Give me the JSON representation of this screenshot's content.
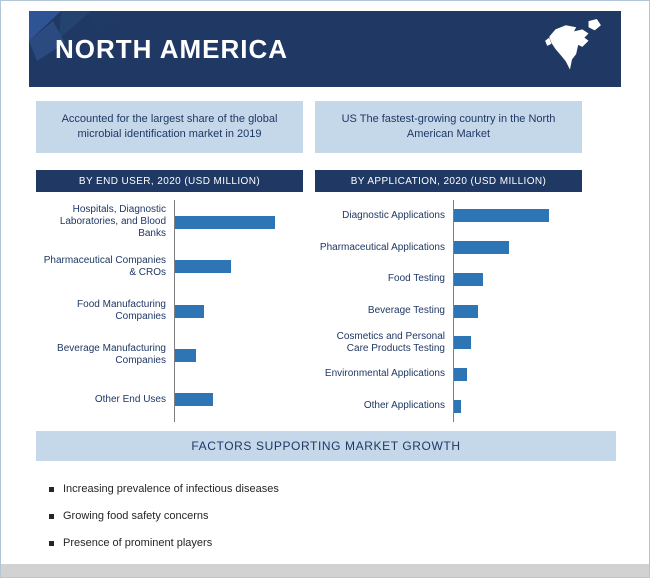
{
  "header": {
    "title": "NORTH AMERICA"
  },
  "highlights": {
    "left": "Accounted for the largest share of the global microbial identification market in 2019",
    "right": "US The fastest-growing country in the North American Market"
  },
  "chart_data": [
    {
      "type": "bar",
      "orientation": "horizontal",
      "title": "BY END USER, 2020 (USD MILLION)",
      "categories": [
        "Hospitals, Diagnostic Laboratories, and Blood Banks",
        "Pharmaceutical Companies & CROs",
        "Food Manufacturing Companies",
        "Beverage Manufacturing Companies",
        "Other End Uses"
      ],
      "values": [
        100,
        56,
        29,
        21,
        38
      ],
      "xlim": [
        0,
        128
      ],
      "xlabel": "",
      "ylabel": "",
      "grid": false,
      "legend_position": "none",
      "bar_color": "#2e75b6"
    },
    {
      "type": "bar",
      "orientation": "horizontal",
      "title": "BY APPLICATION, 2020 (USD MILLION)",
      "categories": [
        "Diagnostic Applications",
        "Pharmaceutical Applications",
        "Food Testing",
        "Beverage Testing",
        "Cosmetics and Personal Care Products Testing",
        "Environmental Applications",
        "Other Applications"
      ],
      "values": [
        95,
        55,
        29,
        24,
        17,
        13,
        7
      ],
      "xlim": [
        0,
        128
      ],
      "xlabel": "",
      "ylabel": "",
      "grid": false,
      "legend_position": "none",
      "bar_color": "#2e75b6"
    }
  ],
  "factors": {
    "title": "FACTORS SUPPORTING MARKET GROWTH",
    "items": [
      "Increasing prevalence of infectious diseases",
      "Growing food safety concerns",
      "Presence of prominent players"
    ]
  },
  "icons": {
    "map": "north-america-map-icon"
  },
  "colors": {
    "header_bg": "#1f3864",
    "section_header_bg": "#1f3864",
    "panel_bg": "#c4d8ea",
    "bar_fill": "#2e75b6",
    "text_navy": "#1f3864"
  }
}
